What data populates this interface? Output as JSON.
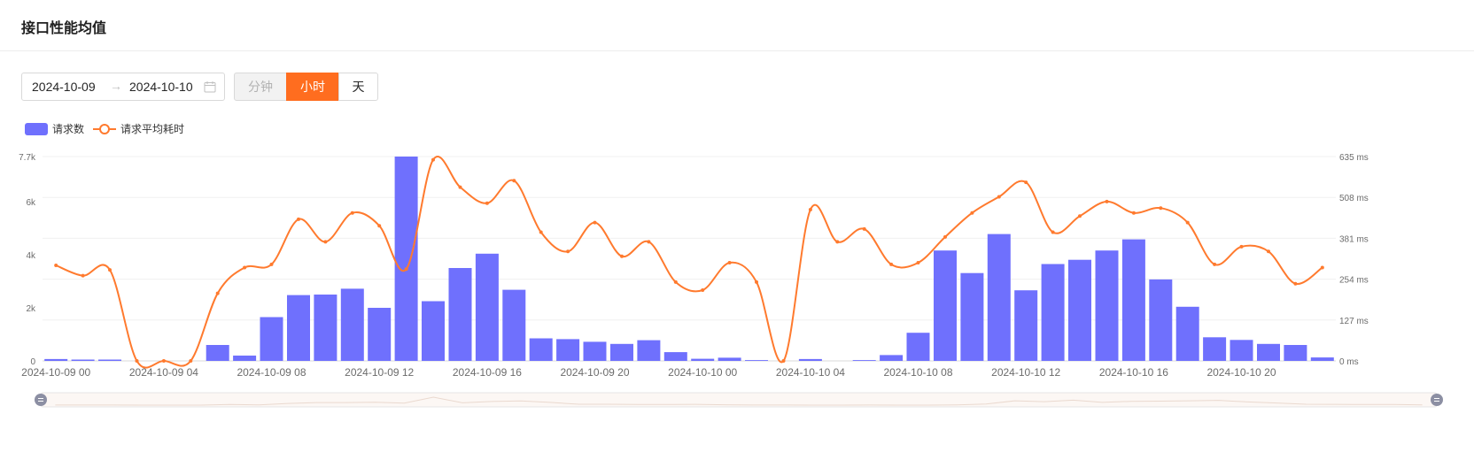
{
  "card": {
    "title": "接口性能均值"
  },
  "date_range": {
    "start": "2024-10-09",
    "arrow": "→",
    "end": "2024-10-10",
    "icon": "calendar-icon"
  },
  "granularity": {
    "options": [
      "分钟",
      "小时",
      "天"
    ],
    "selected": "小时"
  },
  "colors": {
    "bars": "#6f70fd",
    "line": "#ff7a2e",
    "accent": "#ff6d1f"
  },
  "chart_data": {
    "type": "bar",
    "legend": {
      "position": "top-left",
      "entries": [
        "请求数",
        "请求平均耗时"
      ]
    },
    "categories": [
      "2024-10-09 00",
      "2024-10-09 01",
      "2024-10-09 02",
      "2024-10-09 03",
      "2024-10-09 04",
      "2024-10-09 05",
      "2024-10-09 06",
      "2024-10-09 07",
      "2024-10-09 08",
      "2024-10-09 09",
      "2024-10-09 10",
      "2024-10-09 11",
      "2024-10-09 12",
      "2024-10-09 13",
      "2024-10-09 14",
      "2024-10-09 15",
      "2024-10-09 16",
      "2024-10-09 17",
      "2024-10-09 18",
      "2024-10-09 19",
      "2024-10-09 20",
      "2024-10-09 21",
      "2024-10-09 22",
      "2024-10-09 23",
      "2024-10-10 00",
      "2024-10-10 01",
      "2024-10-10 02",
      "2024-10-10 03",
      "2024-10-10 04",
      "2024-10-10 05",
      "2024-10-10 06",
      "2024-10-10 07",
      "2024-10-10 08",
      "2024-10-10 09",
      "2024-10-10 10",
      "2024-10-10 11",
      "2024-10-10 12",
      "2024-10-10 13",
      "2024-10-10 14",
      "2024-10-10 15",
      "2024-10-10 16",
      "2024-10-10 17",
      "2024-10-10 18",
      "2024-10-10 19",
      "2024-10-10 20",
      "2024-10-10 21",
      "2024-10-10 22",
      "2024-10-10 23"
    ],
    "x_tick_labels": [
      "2024-10-09 00",
      "2024-10-09 04",
      "2024-10-09 08",
      "2024-10-09 12",
      "2024-10-09 16",
      "2024-10-09 20",
      "2024-10-10 00",
      "2024-10-10 04",
      "2024-10-10 08",
      "2024-10-10 12",
      "2024-10-10 16",
      "2024-10-10 20"
    ],
    "series": [
      {
        "name": "请求数",
        "type": "bar",
        "axis": "left",
        "values": [
          70,
          50,
          50,
          0,
          0,
          0,
          600,
          200,
          1650,
          2480,
          2500,
          2720,
          2000,
          7700,
          2250,
          3500,
          4040,
          2680,
          850,
          820,
          720,
          640,
          780,
          330,
          80,
          120,
          30,
          0,
          70,
          0,
          30,
          220,
          1060,
          4160,
          3310,
          4780,
          2660,
          3650,
          3810,
          4160,
          4580,
          3070,
          2040,
          890,
          790,
          640,
          600,
          130
        ]
      },
      {
        "name": "请求平均耗时",
        "type": "line",
        "axis": "right",
        "values": [
          297,
          265,
          283,
          0,
          0,
          0,
          210,
          290,
          300,
          440,
          370,
          460,
          420,
          285,
          625,
          540,
          490,
          560,
          400,
          340,
          430,
          325,
          370,
          245,
          220,
          305,
          245,
          0,
          470,
          370,
          410,
          300,
          305,
          385,
          460,
          510,
          555,
          400,
          450,
          495,
          460,
          475,
          430,
          300,
          355,
          340,
          240,
          290
        ]
      }
    ],
    "y_left": {
      "min": 0,
      "max": 7700,
      "tick_labels": [
        "0",
        "2k",
        "4k",
        "6k",
        "7.7k"
      ]
    },
    "y_right": {
      "min": 0,
      "max": 635,
      "tick_labels": [
        "0 ms",
        "127 ms",
        "254 ms",
        "381 ms",
        "508 ms",
        "635 ms"
      ]
    },
    "grid": true,
    "data_zoom": {
      "start": 0,
      "end": 100
    }
  }
}
